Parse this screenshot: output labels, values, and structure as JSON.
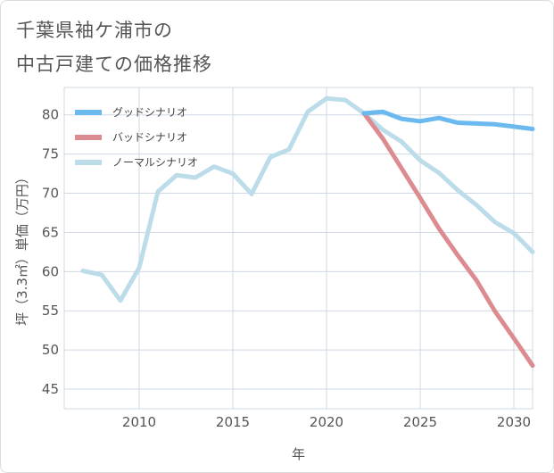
{
  "title_lines": [
    "千葉県袖ケ浦市の",
    "中古戸建ての価格推移"
  ],
  "chart_data": {
    "type": "line",
    "xlabel": "年",
    "ylabel": "坪（3.3㎡）単価（万円）",
    "xlim": [
      2006,
      2031
    ],
    "ylim": [
      42.5,
      83.5
    ],
    "x_ticks": [
      2010,
      2015,
      2020,
      2025,
      2030
    ],
    "y_ticks": [
      45,
      50,
      55,
      60,
      65,
      70,
      75,
      80
    ],
    "grid": true,
    "legend_position": "top-left",
    "series": [
      {
        "name": "グッドシナリオ",
        "color": "#6bb9ee",
        "x": [
          2022,
          2023,
          2024,
          2025,
          2026,
          2027,
          2028,
          2029,
          2030,
          2031
        ],
        "values": [
          80.2,
          80.4,
          79.5,
          79.2,
          79.6,
          79.0,
          78.9,
          78.8,
          78.5,
          78.2
        ]
      },
      {
        "name": "バッドシナリオ",
        "color": "#dc8c91",
        "x": [
          2022,
          2023,
          2024,
          2025,
          2026,
          2027,
          2028,
          2029,
          2030,
          2031
        ],
        "values": [
          80.2,
          77.0,
          73.2,
          69.4,
          65.5,
          62.1,
          58.9,
          54.9,
          51.5,
          48.0
        ]
      },
      {
        "name": "ノーマルシナリオ",
        "color": "#bcdcea",
        "x": [
          2007,
          2008,
          2009,
          2010,
          2011,
          2012,
          2013,
          2014,
          2015,
          2016,
          2017,
          2018,
          2019,
          2020,
          2021,
          2022,
          2023,
          2024,
          2025,
          2026,
          2027,
          2028,
          2029,
          2030,
          2031
        ],
        "values": [
          60.1,
          59.6,
          56.3,
          60.5,
          70.2,
          72.3,
          72.0,
          73.4,
          72.5,
          69.9,
          74.6,
          75.6,
          80.4,
          82.1,
          81.9,
          80.2,
          78.1,
          76.6,
          74.2,
          72.6,
          70.4,
          68.5,
          66.3,
          64.9,
          62.5
        ]
      }
    ]
  }
}
